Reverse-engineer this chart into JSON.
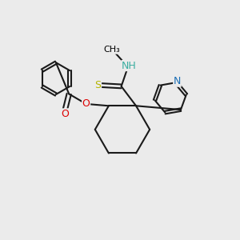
{
  "bg_color": "#ebebeb",
  "atom_colors": {
    "N_blue": "#1a6eb5",
    "N_teal": "#3aada0",
    "O": "#dd0000",
    "S": "#b5b500",
    "C": "#000000"
  },
  "bond_color": "#1a1a1a",
  "bond_width": 1.5,
  "figsize": [
    3.0,
    3.0
  ],
  "dpi": 100,
  "xlim": [
    0,
    10
  ],
  "ylim": [
    0,
    10
  ]
}
